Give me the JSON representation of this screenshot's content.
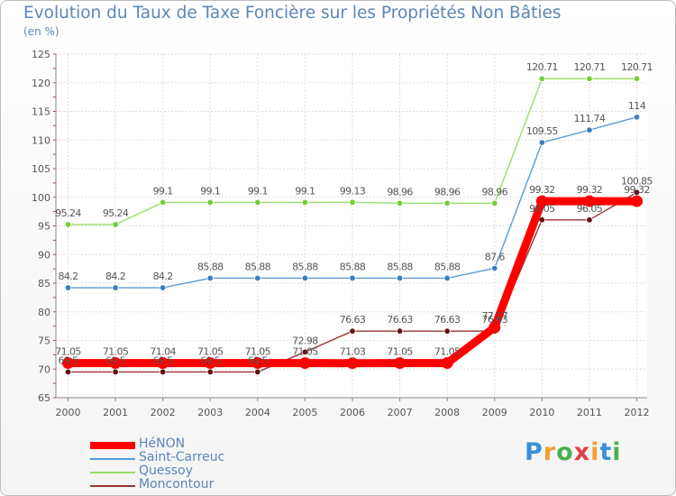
{
  "title": "Evolution du Taux de Taxe Foncière sur les Propriétés Non Bâties",
  "unit_label": "(en %)",
  "logo_text": "Proxiti",
  "chart_data": {
    "type": "line",
    "title": "Evolution du Taux de Taxe Foncière sur les Propriétés Non Bâties",
    "ylabel": "(en %)",
    "xlabel": "",
    "categories": [
      "2000",
      "2001",
      "2002",
      "2003",
      "2004",
      "2005",
      "2006",
      "2007",
      "2008",
      "2009",
      "2010",
      "2011",
      "2012"
    ],
    "ylim": [
      65,
      125
    ],
    "yticks": [
      65,
      70,
      75,
      80,
      85,
      90,
      95,
      100,
      105,
      110,
      115,
      120,
      125
    ],
    "grid": true,
    "legend_position": "bottom-left",
    "series": [
      {
        "name": "HéNON",
        "color": "#ff0000",
        "emphasis": true,
        "values": [
          71.05,
          71.05,
          71.04,
          71.05,
          71.05,
          71.05,
          71.03,
          71.05,
          71.05,
          77.27,
          99.32,
          99.32,
          99.32
        ],
        "labels": [
          "71.05",
          "71.05",
          "71.04",
          "71.05",
          "71.05",
          "71.05",
          "71.03",
          "71.05",
          "71.05",
          "77.27",
          "99.32",
          "99.32",
          "99.32"
        ]
      },
      {
        "name": "Saint-Carreuc",
        "color": "#5b9bd5",
        "marker": "#3d7fbf",
        "values": [
          84.2,
          84.2,
          84.2,
          85.88,
          85.88,
          85.88,
          85.88,
          85.88,
          85.88,
          87.6,
          109.55,
          111.74,
          114
        ],
        "labels": [
          "84.2",
          "84.2",
          "84.2",
          "85.88",
          "85.88",
          "85.88",
          "85.88",
          "85.88",
          "85.88",
          "87.6",
          "109.55",
          "111.74",
          "114"
        ]
      },
      {
        "name": "Quessoy",
        "color": "#99dd66",
        "marker": "#77cc33",
        "values": [
          95.24,
          95.24,
          99.1,
          99.1,
          99.1,
          99.1,
          99.13,
          98.96,
          98.96,
          98.96,
          120.71,
          120.71,
          120.71
        ],
        "labels": [
          "95.24",
          "95.24",
          "99.1",
          "99.1",
          "99.1",
          "99.1",
          "99.13",
          "98.96",
          "98.96",
          "98.96",
          "120.71",
          "120.71",
          "120.71"
        ]
      },
      {
        "name": "Moncontour",
        "color": "#993333",
        "marker": "#661111",
        "values": [
          69.5,
          69.5,
          69.5,
          69.5,
          69.5,
          72.98,
          76.63,
          76.63,
          76.63,
          76.63,
          96.05,
          96.05,
          100.85
        ],
        "labels": [
          "69.5",
          "69.5",
          "69.5",
          "69.5",
          "69.5",
          "72.98",
          "76.63",
          "76.63",
          "76.63",
          "76.63",
          "96.05",
          "96.05",
          "100.85"
        ]
      }
    ]
  }
}
